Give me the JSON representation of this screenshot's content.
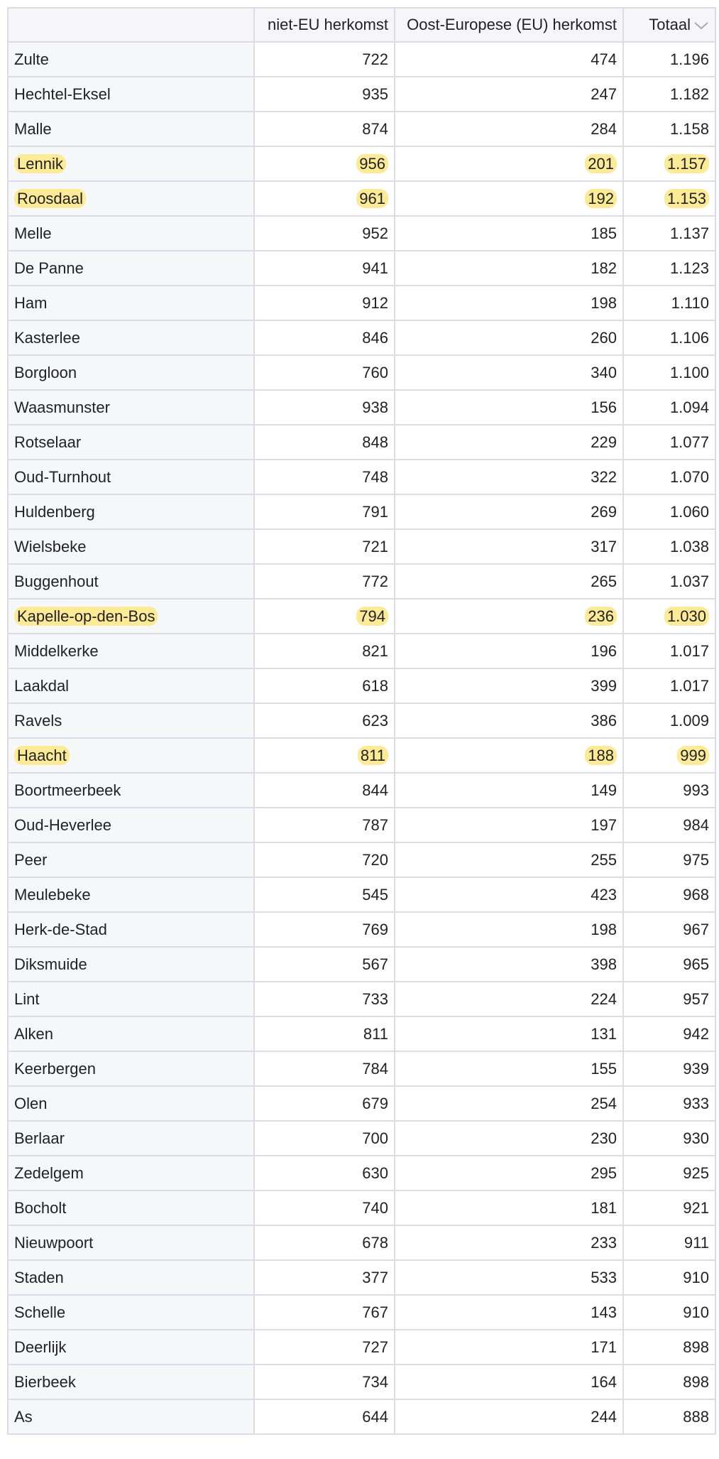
{
  "table": {
    "header": [
      "niet-EU herkomst",
      "Oost-Europese (EU) herkomst",
      "Totaal"
    ],
    "rows": [
      [
        "Zulte",
        "722",
        "474",
        "1.196"
      ],
      [
        "Hechtel-Eksel",
        "935",
        "247",
        "1.182"
      ],
      [
        "Malle",
        "874",
        "284",
        "1.158"
      ],
      [
        "Lennik",
        "956",
        "201",
        "1.157"
      ],
      [
        "Roosdaal",
        "961",
        "192",
        "1.153"
      ],
      [
        "Melle",
        "952",
        "185",
        "1.137"
      ],
      [
        "De Panne",
        "941",
        "182",
        "1.123"
      ],
      [
        "Ham",
        "912",
        "198",
        "1.110"
      ],
      [
        "Kasterlee",
        "846",
        "260",
        "1.106"
      ],
      [
        "Borgloon",
        "760",
        "340",
        "1.100"
      ],
      [
        "Waasmunster",
        "938",
        "156",
        "1.094"
      ],
      [
        "Rotselaar",
        "848",
        "229",
        "1.077"
      ],
      [
        "Oud-Turnhout",
        "748",
        "322",
        "1.070"
      ],
      [
        "Huldenberg",
        "791",
        "269",
        "1.060"
      ],
      [
        "Wielsbeke",
        "721",
        "317",
        "1.038"
      ],
      [
        "Buggenhout",
        "772",
        "265",
        "1.037"
      ],
      [
        "Kapelle-op-den-Bos",
        "794",
        "236",
        "1.030"
      ],
      [
        "Middelkerke",
        "821",
        "196",
        "1.017"
      ],
      [
        "Laakdal",
        "618",
        "399",
        "1.017"
      ],
      [
        "Ravels",
        "623",
        "386",
        "1.009"
      ],
      [
        "Haacht",
        "811",
        "188",
        "999"
      ],
      [
        "Boortmeerbeek",
        "844",
        "149",
        "993"
      ],
      [
        "Oud-Heverlee",
        "787",
        "197",
        "984"
      ],
      [
        "Peer",
        "720",
        "255",
        "975"
      ],
      [
        "Meulebeke",
        "545",
        "423",
        "968"
      ],
      [
        "Herk-de-Stad",
        "769",
        "198",
        "967"
      ],
      [
        "Diksmuide",
        "567",
        "398",
        "965"
      ],
      [
        "Lint",
        "733",
        "224",
        "957"
      ],
      [
        "Alken",
        "811",
        "131",
        "942"
      ],
      [
        "Keerbergen",
        "784",
        "155",
        "939"
      ],
      [
        "Olen",
        "679",
        "254",
        "933"
      ],
      [
        "Berlaar",
        "700",
        "230",
        "930"
      ],
      [
        "Zedelgem",
        "630",
        "295",
        "925"
      ],
      [
        "Bocholt",
        "740",
        "181",
        "921"
      ],
      [
        "Nieuwpoort",
        "678",
        "233",
        "911"
      ],
      [
        "Staden",
        "377",
        "533",
        "910"
      ],
      [
        "Schelle",
        "767",
        "143",
        "910"
      ],
      [
        "Deerlijk",
        "727",
        "171",
        "898"
      ],
      [
        "Bierbeek",
        "734",
        "164",
        "898"
      ],
      [
        "As",
        "644",
        "244",
        "888"
      ]
    ],
    "highlighted": [
      3,
      4,
      16,
      20
    ]
  }
}
